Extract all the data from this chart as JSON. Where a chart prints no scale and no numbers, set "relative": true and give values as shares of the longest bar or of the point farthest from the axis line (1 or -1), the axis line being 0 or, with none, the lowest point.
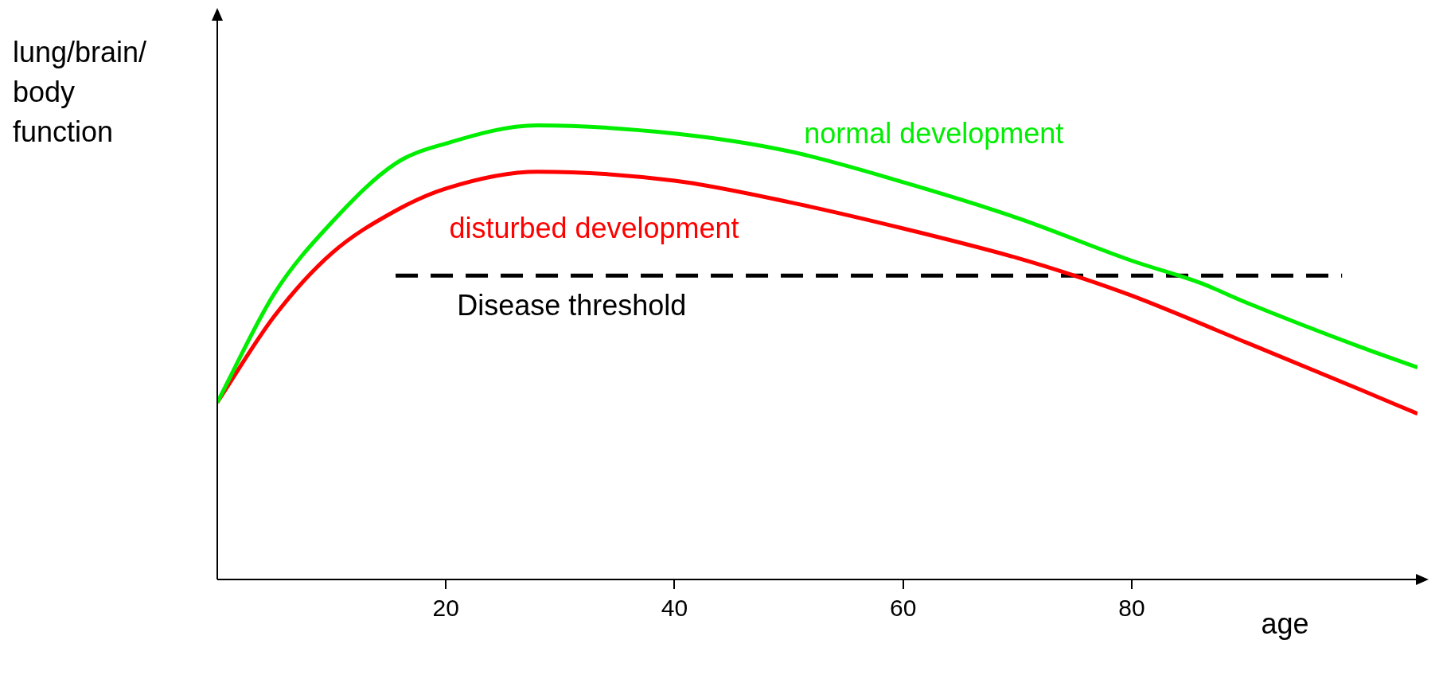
{
  "chart_data": {
    "type": "line",
    "relative": true,
    "xlabel": "age",
    "ylabel": "lung/brain/body function",
    "xlim": [
      0,
      105
    ],
    "xticks": [
      20,
      40,
      60,
      80
    ],
    "grid": false,
    "legend": false,
    "marker": "none",
    "series": [
      {
        "name": "normal development",
        "color": "#00ee00",
        "x": [
          0,
          5,
          10,
          15.6,
          20,
          28,
          40,
          50,
          60,
          70,
          80,
          86,
          90,
          100,
          105
        ],
        "values": [
          0.39,
          0.63,
          0.786,
          0.916,
          0.96,
          1,
          0.982,
          0.943,
          0.875,
          0.796,
          0.702,
          0.653,
          0.61,
          0.512,
          0.467
        ]
      },
      {
        "name": "disturbed development",
        "color": "#ff0000",
        "x": [
          0,
          5,
          10,
          15.6,
          20,
          28,
          40,
          50,
          60,
          70,
          75,
          80,
          90,
          100,
          105
        ],
        "values": [
          0.39,
          0.58,
          0.718,
          0.812,
          0.861,
          0.898,
          0.878,
          0.831,
          0.773,
          0.708,
          0.669,
          0.625,
          0.522,
          0.418,
          0.365
        ]
      },
      {
        "name": "Disease threshold",
        "color": "#000000",
        "line_style": "dashed",
        "x": [
          15.6,
          98.4
        ],
        "values": [
          0.669,
          0.669
        ]
      }
    ]
  }
}
